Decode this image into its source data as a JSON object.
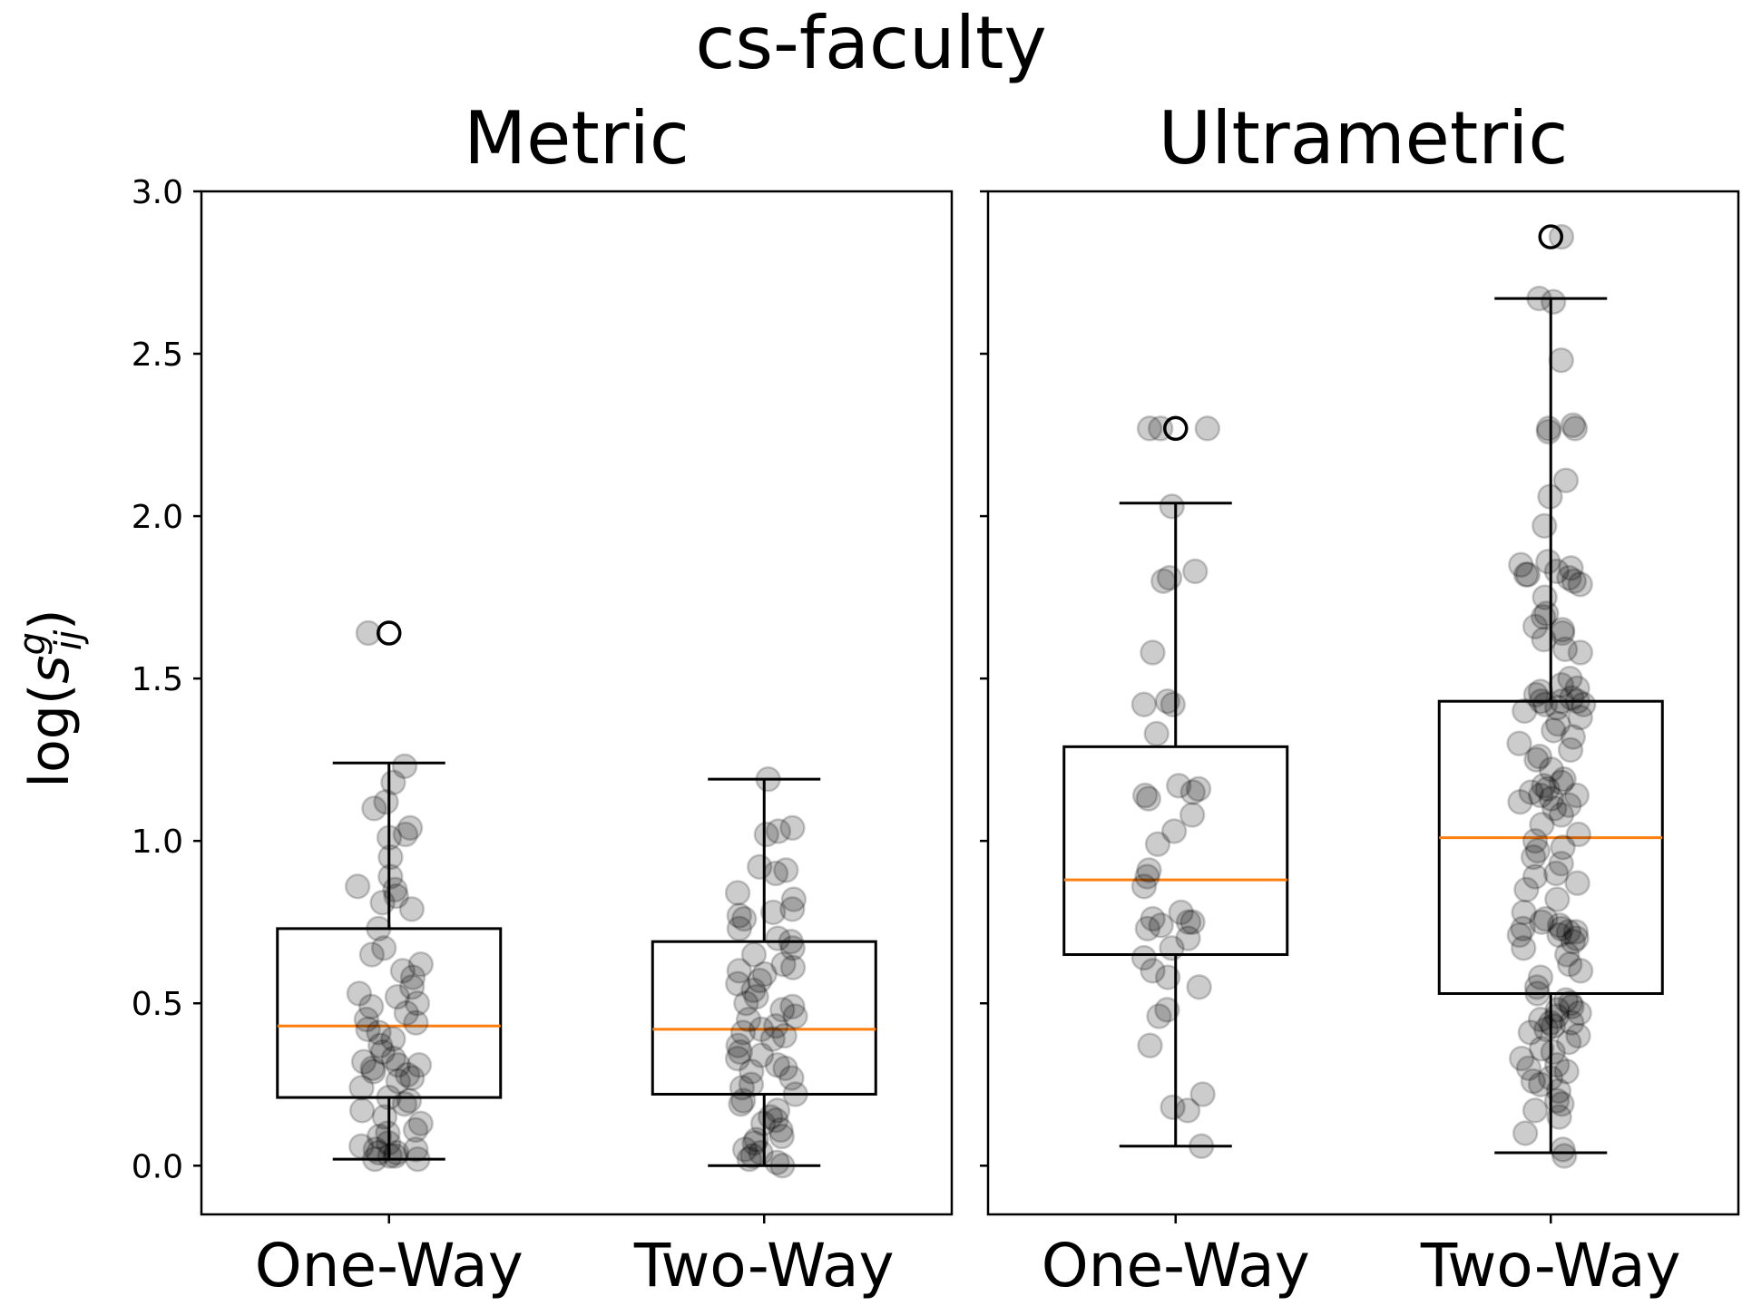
{
  "chart_data": {
    "type": "box",
    "title": "cs-faculty",
    "ylabel": {
      "prefix": "log(",
      "var": "s",
      "sup": "g",
      "sub": "ij",
      "suffix": ")"
    },
    "ylim": [
      -0.15,
      3.0
    ],
    "yticks": [
      0.0,
      0.5,
      1.0,
      1.5,
      2.0,
      2.5,
      3.0
    ],
    "ytick_labels": [
      "0.0",
      "0.5",
      "1.0",
      "1.5",
      "2.0",
      "2.5",
      "3.0"
    ],
    "categories": [
      "One-Way",
      "Two-Way"
    ],
    "colors": {
      "box": "#000000",
      "median": "#ff7f0e",
      "points": "#000000"
    },
    "point_alpha": 0.2,
    "panels": [
      {
        "title": "Metric",
        "boxes": [
          {
            "category": "One-Way",
            "whisker_low": 0.02,
            "q1": 0.21,
            "median": 0.43,
            "q3": 0.73,
            "whisker_high": 1.24,
            "outliers": [
              1.64
            ],
            "points": [
              1.64,
              1.23,
              1.18,
              1.12,
              1.1,
              1.04,
              1.02,
              1.01,
              0.95,
              0.89,
              0.86,
              0.85,
              0.83,
              0.81,
              0.79,
              0.73,
              0.67,
              0.65,
              0.62,
              0.6,
              0.58,
              0.55,
              0.53,
              0.52,
              0.5,
              0.49,
              0.47,
              0.45,
              0.44,
              0.42,
              0.41,
              0.39,
              0.37,
              0.35,
              0.33,
              0.32,
              0.31,
              0.31,
              0.3,
              0.29,
              0.28,
              0.27,
              0.26,
              0.24,
              0.21,
              0.2,
              0.19,
              0.17,
              0.15,
              0.13,
              0.11,
              0.1,
              0.09,
              0.07,
              0.06,
              0.05,
              0.05,
              0.04,
              0.04,
              0.03,
              0.03,
              0.02,
              0.02
            ]
          },
          {
            "category": "Two-Way",
            "whisker_low": 0.0,
            "q1": 0.22,
            "median": 0.42,
            "q3": 0.69,
            "whisker_high": 1.19,
            "outliers": [],
            "points": [
              1.19,
              1.04,
              1.03,
              1.02,
              0.92,
              0.91,
              0.9,
              0.84,
              0.82,
              0.79,
              0.78,
              0.77,
              0.76,
              0.73,
              0.7,
              0.69,
              0.67,
              0.65,
              0.62,
              0.61,
              0.6,
              0.59,
              0.57,
              0.56,
              0.54,
              0.52,
              0.5,
              0.49,
              0.48,
              0.46,
              0.45,
              0.43,
              0.42,
              0.41,
              0.4,
              0.39,
              0.37,
              0.35,
              0.34,
              0.33,
              0.31,
              0.3,
              0.29,
              0.27,
              0.25,
              0.24,
              0.22,
              0.2,
              0.19,
              0.17,
              0.15,
              0.14,
              0.13,
              0.11,
              0.09,
              0.08,
              0.07,
              0.05,
              0.04,
              0.03,
              0.02,
              0.01,
              0.0
            ]
          }
        ]
      },
      {
        "title": "Ultrametric",
        "boxes": [
          {
            "category": "One-Way",
            "whisker_low": 0.06,
            "q1": 0.65,
            "median": 0.88,
            "q3": 1.29,
            "whisker_high": 2.04,
            "outliers": [
              2.27
            ],
            "points": [
              2.27,
              2.27,
              2.27,
              2.03,
              1.83,
              1.81,
              1.8,
              1.58,
              1.43,
              1.42,
              1.42,
              1.33,
              1.17,
              1.16,
              1.15,
              1.14,
              1.13,
              1.08,
              1.03,
              0.99,
              0.91,
              0.89,
              0.86,
              0.78,
              0.76,
              0.75,
              0.75,
              0.74,
              0.73,
              0.7,
              0.67,
              0.64,
              0.6,
              0.58,
              0.55,
              0.48,
              0.46,
              0.37,
              0.22,
              0.18,
              0.17,
              0.06
            ]
          },
          {
            "category": "Two-Way",
            "whisker_low": 0.04,
            "q1": 0.53,
            "median": 1.01,
            "q3": 1.43,
            "whisker_high": 2.67,
            "outliers": [
              2.86
            ],
            "points": [
              2.86,
              2.67,
              2.66,
              2.48,
              2.28,
              2.27,
              2.27,
              2.26,
              2.11,
              2.06,
              1.97,
              1.86,
              1.85,
              1.84,
              1.83,
              1.82,
              1.82,
              1.81,
              1.8,
              1.79,
              1.75,
              1.7,
              1.69,
              1.66,
              1.65,
              1.64,
              1.62,
              1.59,
              1.58,
              1.5,
              1.48,
              1.47,
              1.46,
              1.45,
              1.44,
              1.43,
              1.43,
              1.43,
              1.42,
              1.42,
              1.41,
              1.4,
              1.38,
              1.36,
              1.34,
              1.32,
              1.3,
              1.28,
              1.26,
              1.25,
              1.22,
              1.19,
              1.18,
              1.17,
              1.16,
              1.15,
              1.14,
              1.14,
              1.13,
              1.12,
              1.11,
              1.1,
              1.08,
              1.05,
              1.02,
              1.0,
              0.98,
              0.97,
              0.95,
              0.93,
              0.9,
              0.89,
              0.87,
              0.85,
              0.82,
              0.78,
              0.76,
              0.75,
              0.74,
              0.73,
              0.73,
              0.72,
              0.72,
              0.71,
              0.71,
              0.7,
              0.69,
              0.67,
              0.65,
              0.62,
              0.6,
              0.58,
              0.55,
              0.53,
              0.51,
              0.5,
              0.49,
              0.48,
              0.47,
              0.46,
              0.45,
              0.44,
              0.44,
              0.43,
              0.42,
              0.41,
              0.4,
              0.38,
              0.36,
              0.35,
              0.33,
              0.31,
              0.3,
              0.29,
              0.27,
              0.26,
              0.25,
              0.23,
              0.2,
              0.19,
              0.17,
              0.15,
              0.1,
              0.05,
              0.03
            ]
          }
        ]
      }
    ]
  }
}
